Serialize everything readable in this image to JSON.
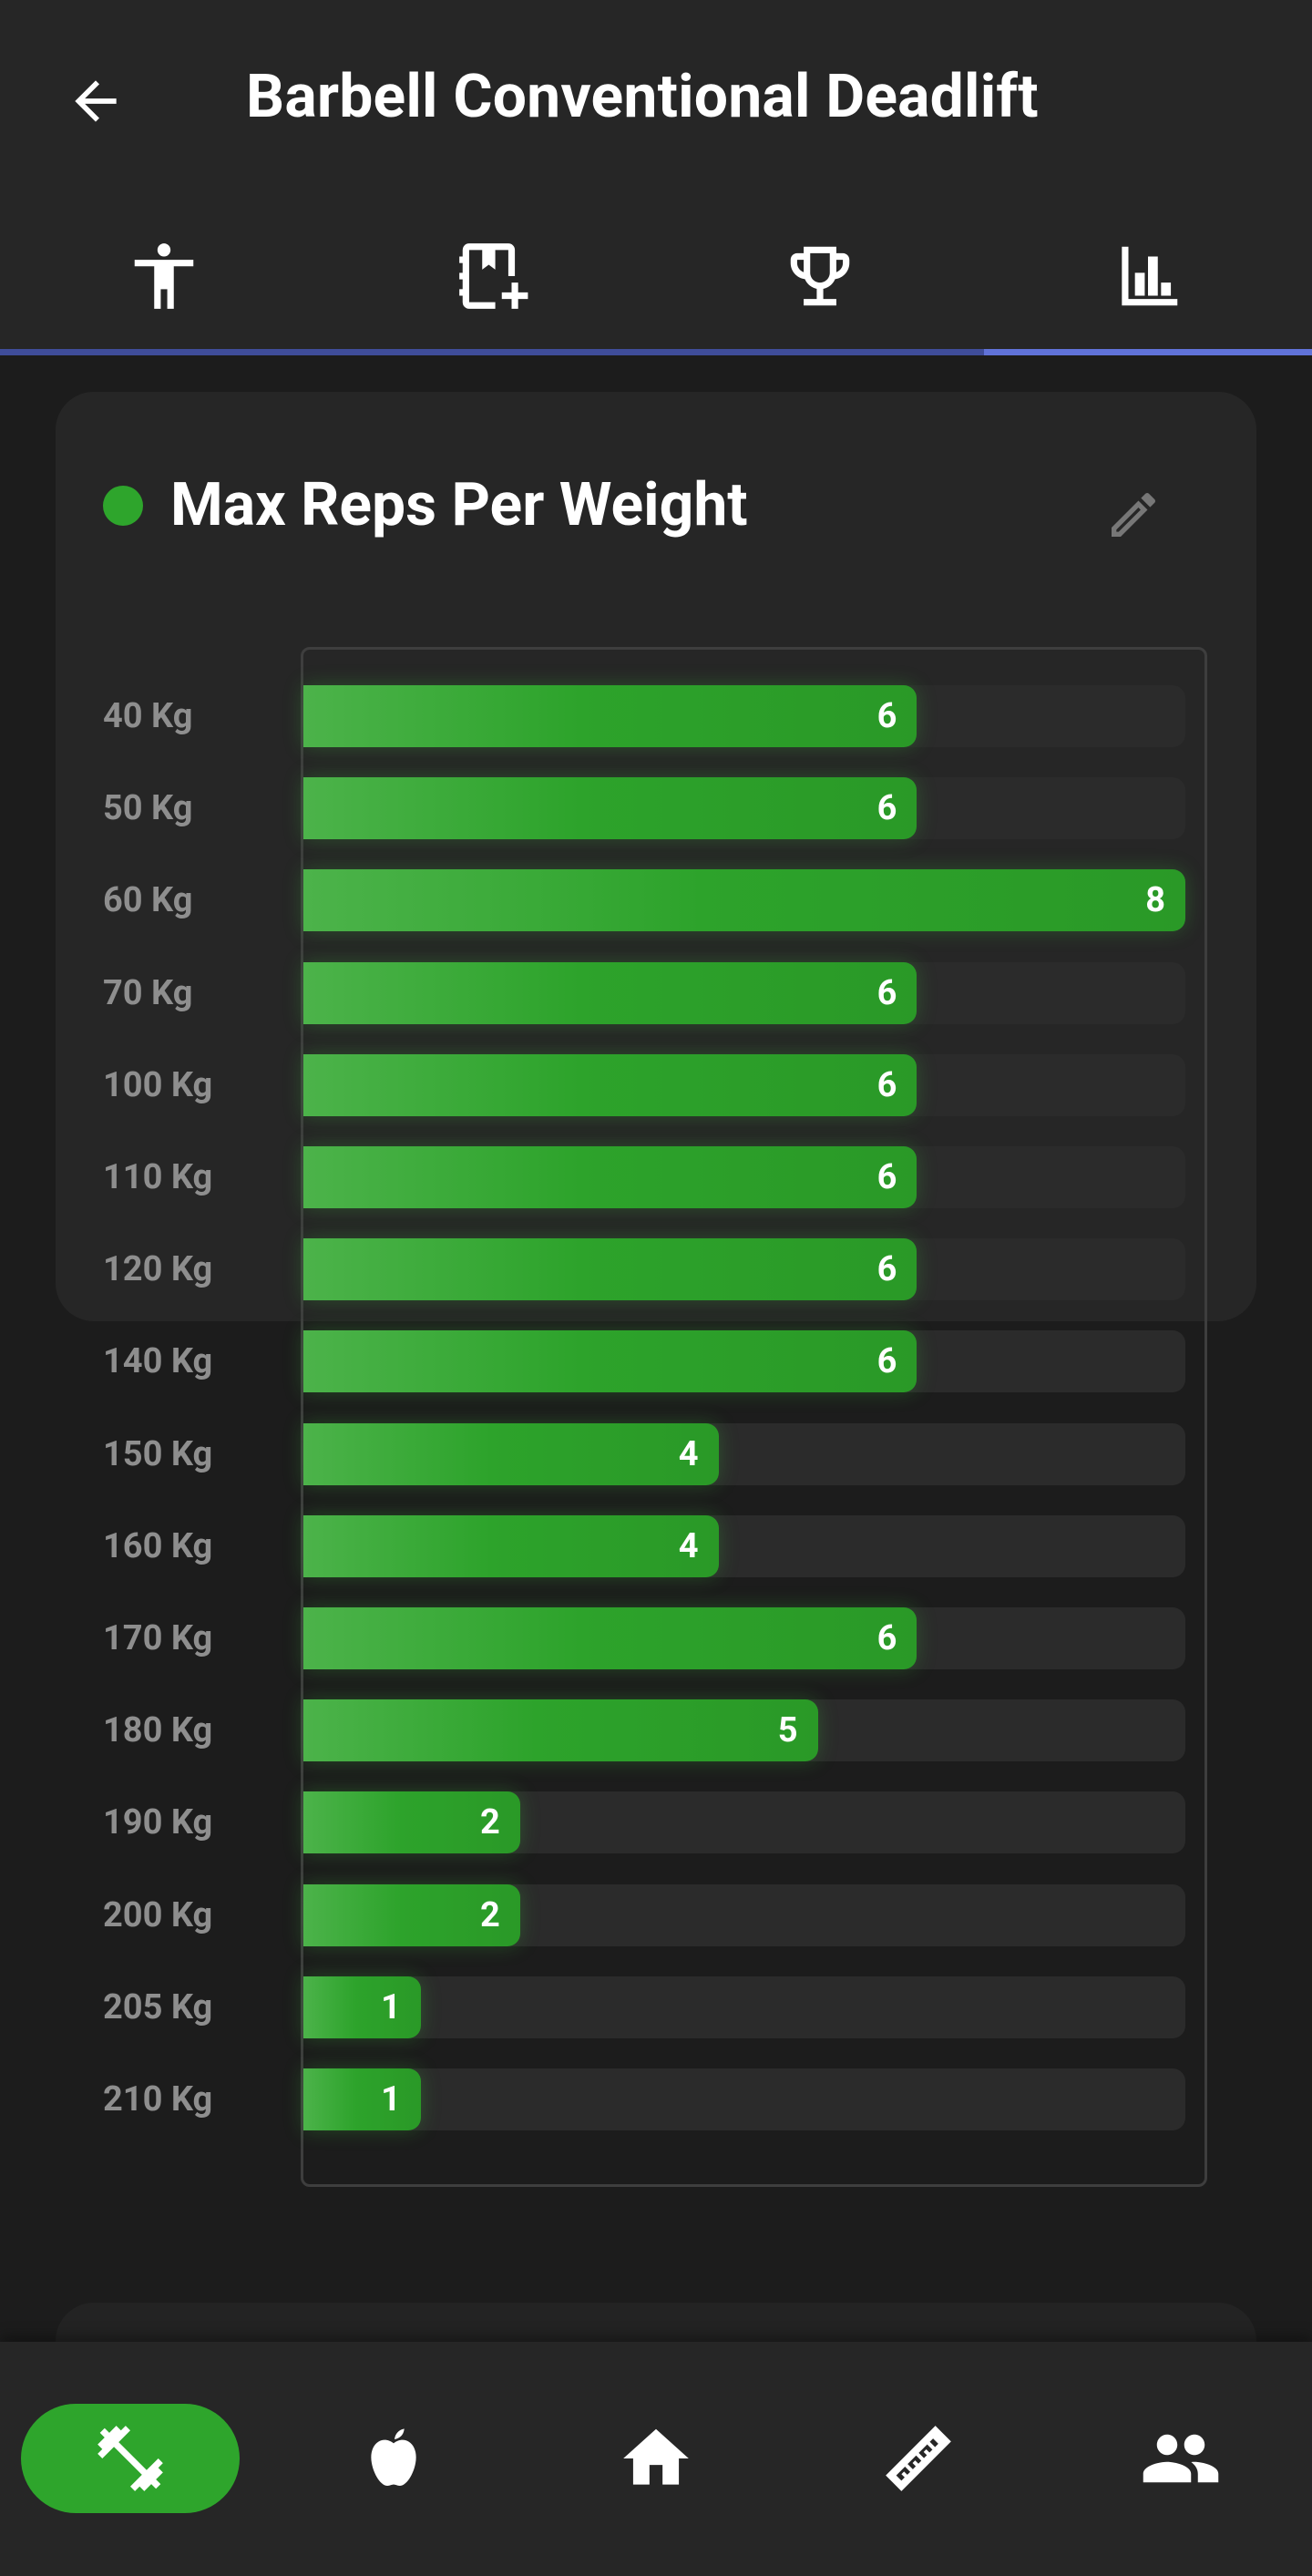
{
  "header": {
    "title": "Barbell Conventional Deadlift"
  },
  "tabs": [
    {
      "icon": "person-icon"
    },
    {
      "icon": "add-note-icon"
    },
    {
      "icon": "trophy-icon"
    },
    {
      "icon": "bar-chart-icon",
      "active": true
    }
  ],
  "card": {
    "title": "Max Reps Per Weight",
    "status_color": "#2ea52c"
  },
  "chart_data": {
    "type": "bar",
    "orientation": "horizontal",
    "title": "Max Reps Per Weight",
    "categories": [
      "40 Kg",
      "50 Kg",
      "60 Kg",
      "70 Kg",
      "100 Kg",
      "110 Kg",
      "120 Kg",
      "140 Kg",
      "150 Kg",
      "160 Kg",
      "170 Kg",
      "180 Kg",
      "190 Kg",
      "200 Kg",
      "205 Kg",
      "210 Kg"
    ],
    "values": [
      6,
      6,
      8,
      6,
      6,
      6,
      6,
      6,
      4,
      4,
      6,
      5,
      2,
      2,
      1,
      1
    ],
    "xlim": [
      0,
      8
    ],
    "bar_color": "#2ea52c"
  },
  "bottom_nav": [
    {
      "icon": "dumbbell-icon",
      "active": true
    },
    {
      "icon": "apple-icon"
    },
    {
      "icon": "home-icon"
    },
    {
      "icon": "ruler-icon"
    },
    {
      "icon": "people-icon"
    }
  ]
}
